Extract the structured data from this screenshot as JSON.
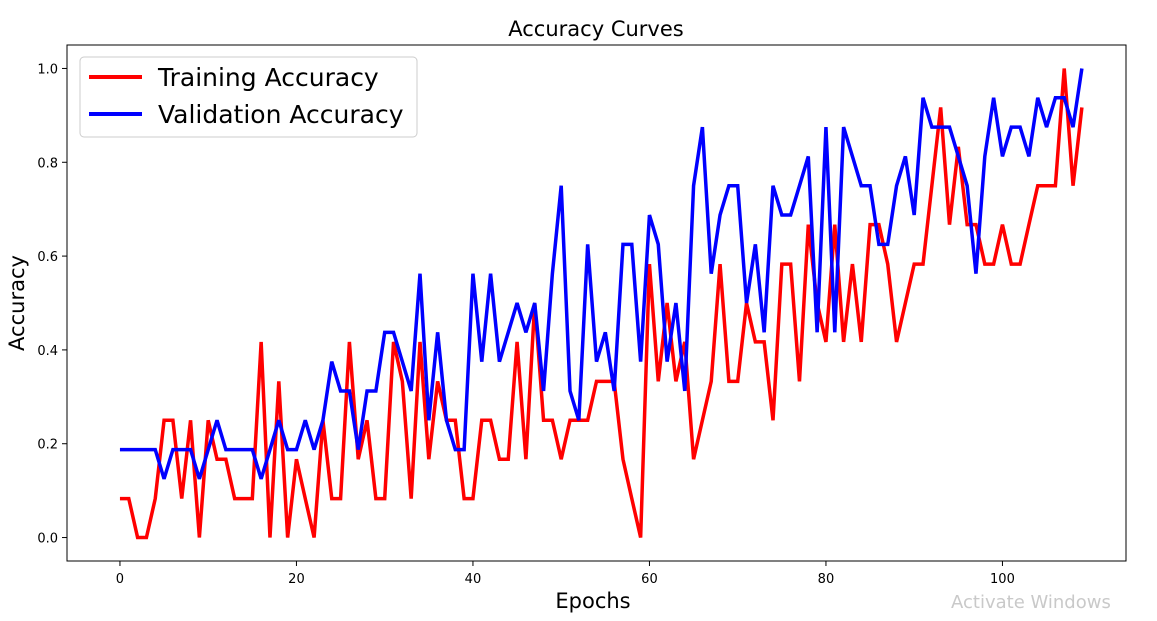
{
  "watermark": "Activate Windows",
  "chart_data": {
    "type": "line",
    "title": "Accuracy Curves",
    "xlabel": "Epochs",
    "ylabel": "Accuracy",
    "xlim": [
      -6,
      114
    ],
    "ylim": [
      -0.05,
      1.05
    ],
    "xticks": [
      0,
      20,
      40,
      60,
      80,
      100
    ],
    "xtick_labels": [
      "0",
      "20",
      "40",
      "60",
      "80",
      "100"
    ],
    "yticks": [
      0.0,
      0.2,
      0.4,
      0.6,
      0.8,
      1.0
    ],
    "ytick_labels": [
      "0.0",
      "0.2",
      "0.4",
      "0.6",
      "0.8",
      "1.0"
    ],
    "grid": false,
    "legend": "upper-left",
    "series": [
      {
        "name": "Training Accuracy",
        "color": "#ff0000",
        "values": [
          0.083,
          0.083,
          0.0,
          0.0,
          0.083,
          0.25,
          0.25,
          0.083,
          0.25,
          0.0,
          0.25,
          0.167,
          0.167,
          0.083,
          0.083,
          0.083,
          0.417,
          0.0,
          0.333,
          0.0,
          0.167,
          0.083,
          0.0,
          0.25,
          0.083,
          0.083,
          0.417,
          0.167,
          0.25,
          0.083,
          0.083,
          0.417,
          0.333,
          0.083,
          0.417,
          0.167,
          0.333,
          0.25,
          0.25,
          0.083,
          0.083,
          0.25,
          0.25,
          0.167,
          0.167,
          0.417,
          0.167,
          0.5,
          0.25,
          0.25,
          0.167,
          0.25,
          0.25,
          0.25,
          0.333,
          0.333,
          0.333,
          0.167,
          0.083,
          0.0,
          0.583,
          0.333,
          0.5,
          0.333,
          0.417,
          0.167,
          0.25,
          0.333,
          0.583,
          0.333,
          0.333,
          0.5,
          0.417,
          0.417,
          0.25,
          0.583,
          0.583,
          0.333,
          0.667,
          0.5,
          0.417,
          0.667,
          0.417,
          0.583,
          0.417,
          0.667,
          0.667,
          0.583,
          0.417,
          0.5,
          0.583,
          0.583,
          0.75,
          0.917,
          0.667,
          0.833,
          0.667,
          0.667,
          0.583,
          0.583,
          0.667,
          0.583,
          0.583,
          0.667,
          0.75,
          0.75,
          0.75,
          1.0,
          0.75,
          0.917
        ]
      },
      {
        "name": "Validation Accuracy",
        "color": "#0000ff",
        "values": [
          0.1875,
          0.1875,
          0.1875,
          0.1875,
          0.1875,
          0.125,
          0.1875,
          0.1875,
          0.1875,
          0.125,
          0.1875,
          0.25,
          0.1875,
          0.1875,
          0.1875,
          0.1875,
          0.125,
          0.1875,
          0.25,
          0.1875,
          0.1875,
          0.25,
          0.1875,
          0.25,
          0.375,
          0.3125,
          0.3125,
          0.1875,
          0.3125,
          0.3125,
          0.4375,
          0.4375,
          0.375,
          0.3125,
          0.5625,
          0.25,
          0.4375,
          0.25,
          0.1875,
          0.1875,
          0.5625,
          0.375,
          0.5625,
          0.375,
          0.4375,
          0.5,
          0.4375,
          0.5,
          0.3125,
          0.5625,
          0.75,
          0.3125,
          0.25,
          0.625,
          0.375,
          0.4375,
          0.3125,
          0.625,
          0.625,
          0.375,
          0.6875,
          0.625,
          0.375,
          0.5,
          0.3125,
          0.75,
          0.875,
          0.5625,
          0.6875,
          0.75,
          0.75,
          0.5,
          0.625,
          0.4375,
          0.75,
          0.6875,
          0.6875,
          0.75,
          0.8125,
          0.4375,
          0.875,
          0.4375,
          0.875,
          0.8125,
          0.75,
          0.75,
          0.625,
          0.625,
          0.75,
          0.8125,
          0.6875,
          0.9375,
          0.875,
          0.875,
          0.875,
          0.8125,
          0.75,
          0.5625,
          0.8125,
          0.9375,
          0.8125,
          0.875,
          0.875,
          0.8125,
          0.9375,
          0.875,
          0.9375,
          0.9375,
          0.875,
          1.0
        ]
      }
    ]
  }
}
